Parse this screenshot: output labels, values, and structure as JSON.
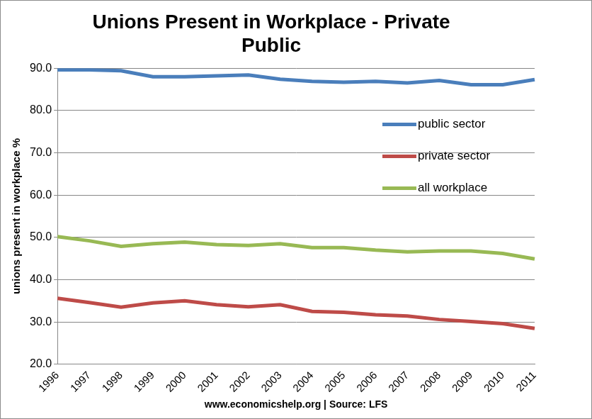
{
  "chart_data": {
    "type": "line",
    "title": "Unions Present in Workplace - Private Public",
    "x_label": "www.economicshelp.org | Source: LFS",
    "y_label": "unions present in workplace %",
    "categories": [
      "1996",
      "1997",
      "1998",
      "1999",
      "2000",
      "2001",
      "2002",
      "2003",
      "2004",
      "2005",
      "2006",
      "2007",
      "2008",
      "2009",
      "2010",
      "2011"
    ],
    "series": [
      {
        "name": "public sector",
        "color": "#4a7ebb",
        "values": [
          89.6,
          89.6,
          89.4,
          88.0,
          88.0,
          88.2,
          88.4,
          87.4,
          86.9,
          86.7,
          86.9,
          86.5,
          87.1,
          86.1,
          86.1,
          87.3
        ]
      },
      {
        "name": "private sector",
        "color": "#be4b48",
        "values": [
          35.6,
          34.6,
          33.5,
          34.5,
          35.0,
          34.1,
          33.6,
          34.1,
          32.5,
          32.3,
          31.7,
          31.4,
          30.6,
          30.1,
          29.6,
          28.5
        ]
      },
      {
        "name": "all workplace",
        "color": "#98b954",
        "values": [
          50.2,
          49.2,
          47.9,
          48.5,
          48.9,
          48.3,
          48.1,
          48.5,
          47.6,
          47.6,
          47.0,
          46.6,
          46.8,
          46.8,
          46.2,
          44.9
        ]
      }
    ],
    "ylim": [
      20,
      90
    ],
    "yticks": [
      {
        "value": 20,
        "label": "20.0"
      },
      {
        "value": 30,
        "label": "30.0"
      },
      {
        "value": 40,
        "label": "40.0"
      },
      {
        "value": 50,
        "label": "50.0"
      },
      {
        "value": 60,
        "label": "60.0"
      },
      {
        "value": 70,
        "label": "70.0"
      },
      {
        "value": 80,
        "label": "80.0"
      },
      {
        "value": 90,
        "label": "90.0"
      }
    ],
    "grid": true,
    "legend": "right"
  }
}
